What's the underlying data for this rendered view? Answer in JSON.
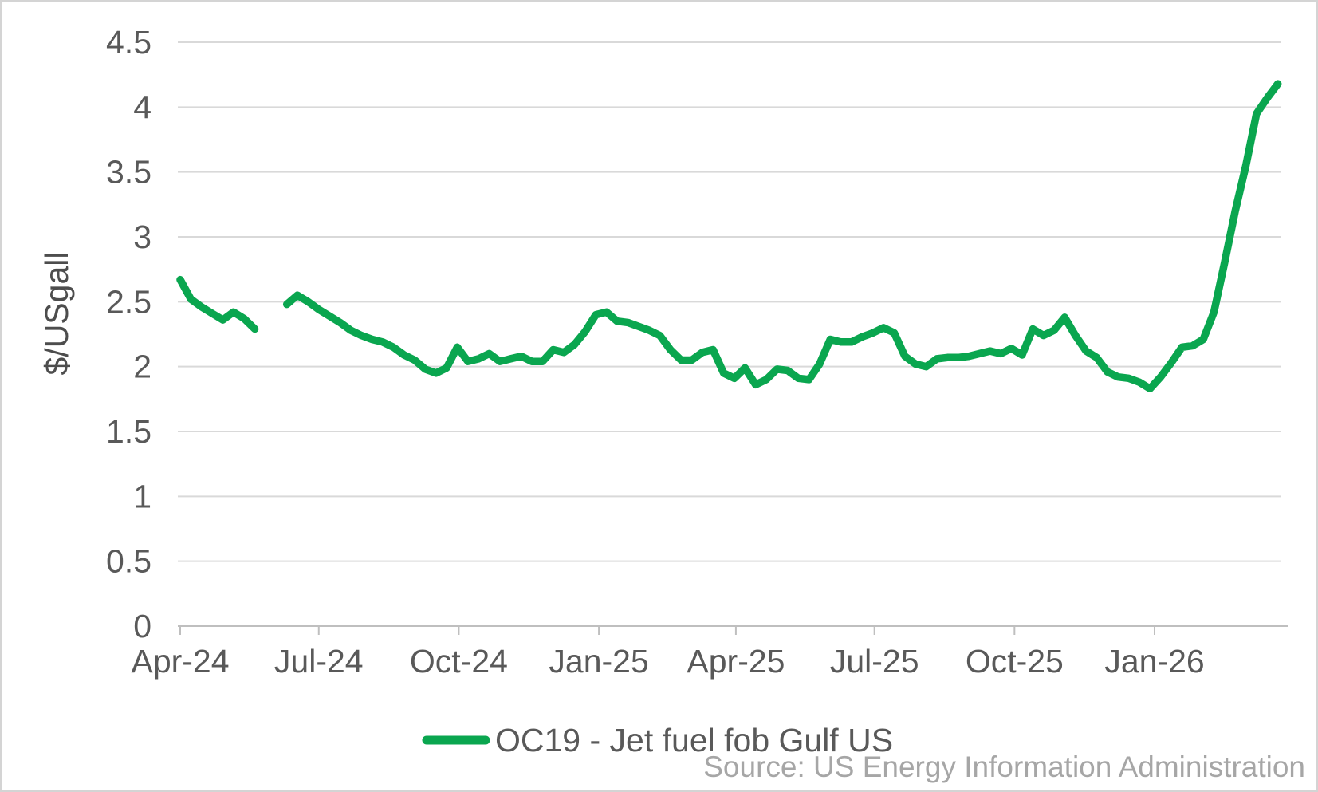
{
  "chart": {
    "y_axis_title": "$/USgall",
    "legend_label": "OC19 - Jet fuel fob Gulf US",
    "source_text": "Source: US Energy Information Administration",
    "colors": {
      "line": "#0AA64F",
      "gridline": "#d9d9d9",
      "axis_line": "#bfbfbf",
      "tick_label": "#595959",
      "axis_title": "#4d4d4d",
      "legend_text": "#595959",
      "source_text": "#a6a6a6"
    }
  },
  "chart_data": {
    "type": "line",
    "title": "",
    "xlabel": "",
    "ylabel": "$/USgall",
    "ylim": [
      0,
      4.5
    ],
    "y_ticks": [
      0,
      0.5,
      1,
      1.5,
      2,
      2.5,
      3,
      3.5,
      4,
      4.5
    ],
    "grid": "horizontal",
    "legend_position": "bottom",
    "x_ticks": [
      {
        "label": "Apr-24",
        "date": "2024-04-01"
      },
      {
        "label": "Jul-24",
        "date": "2024-07-01"
      },
      {
        "label": "Oct-24",
        "date": "2024-10-01"
      },
      {
        "label": "Jan-25",
        "date": "2025-01-01"
      },
      {
        "label": "Apr-25",
        "date": "2025-04-01"
      },
      {
        "label": "Jul-25",
        "date": "2025-07-01"
      },
      {
        "label": "Oct-25",
        "date": "2025-10-01"
      },
      {
        "label": "Jan-26",
        "date": "2026-01-01"
      }
    ],
    "series": [
      {
        "name": "OC19 - Jet fuel fob Gulf US",
        "color": "#0AA64F",
        "x_start": "2024-04-01",
        "interval_days": 7,
        "values": [
          2.67,
          2.52,
          2.46,
          2.41,
          2.36,
          2.42,
          2.37,
          2.29,
          null,
          null,
          2.48,
          2.55,
          2.5,
          2.44,
          2.39,
          2.34,
          2.28,
          2.24,
          2.21,
          2.19,
          2.15,
          2.09,
          2.05,
          1.98,
          1.95,
          1.99,
          2.15,
          2.04,
          2.06,
          2.1,
          2.04,
          2.06,
          2.08,
          2.04,
          2.04,
          2.13,
          2.11,
          2.17,
          2.27,
          2.4,
          2.42,
          2.35,
          2.34,
          2.31,
          2.28,
          2.24,
          2.13,
          2.05,
          2.05,
          2.11,
          2.13,
          1.95,
          1.91,
          1.99,
          1.86,
          1.9,
          1.98,
          1.97,
          1.91,
          1.9,
          2.02,
          2.21,
          2.19,
          2.19,
          2.23,
          2.26,
          2.3,
          2.26,
          2.08,
          2.02,
          2.0,
          2.06,
          2.07,
          2.07,
          2.08,
          2.1,
          2.12,
          2.1,
          2.14,
          2.09,
          2.29,
          2.24,
          2.28,
          2.38,
          2.24,
          2.12,
          2.07,
          1.96,
          1.92,
          1.91,
          1.88,
          1.83,
          1.92,
          2.03,
          2.15,
          2.16,
          2.21,
          2.42,
          2.8,
          3.2,
          3.55,
          3.95,
          4.07,
          4.18
        ]
      }
    ]
  }
}
